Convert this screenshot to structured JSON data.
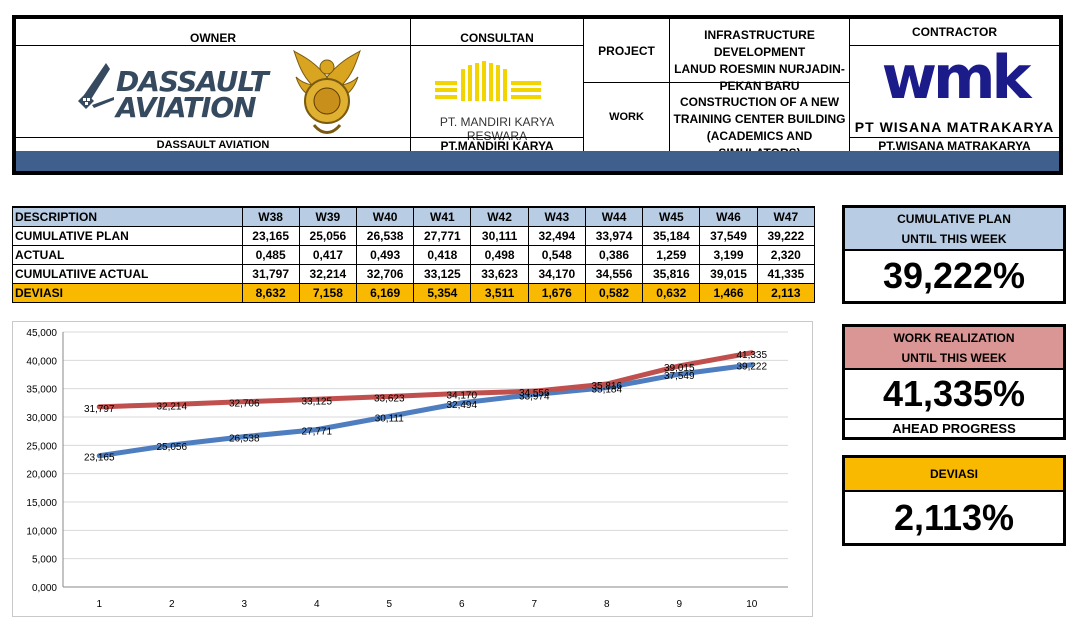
{
  "header": {
    "owner_label": "OWNER",
    "owner_logo_line1": "DASSAULT",
    "owner_logo_line2": "AVIATION",
    "owner_name": "DASSAULT AVIATION",
    "consultant_label": "CONSULTAN",
    "consultant_logo_text": "PT. MANDIRI KARYA RESWARA",
    "consultant_name": "PT.MANDIRI KARYA RESWARA",
    "project_label": "PROJECT",
    "project_value_line1": "INFRASTRUCTURE DEVELOPMENT",
    "project_value_line2": "LANUD ROESMIN NURJADIN-",
    "project_value_line3": "PEKAN BARU",
    "work_label": "WORK",
    "work_value_line1": "CONSTRUCTION OF A NEW",
    "work_value_line2": "TRAINING CENTER BUILDING",
    "work_value_line3": "(ACADEMICS AND SIMULATORS)",
    "contractor_label": "CONTRACTOR",
    "contractor_logo": "wmk",
    "contractor_logo_text": "PT WISANA MATRAKARYA",
    "contractor_name": "PT.WISANA MATRAKARYA"
  },
  "table": {
    "columns": [
      "DESCRIPTION",
      "W38",
      "W39",
      "W40",
      "W41",
      "W42",
      "W43",
      "W44",
      "W45",
      "W46",
      "W47"
    ],
    "rows": [
      {
        "label": "CUMULATIVE PLAN",
        "values": [
          "23,165",
          "25,056",
          "26,538",
          "27,771",
          "30,111",
          "32,494",
          "33,974",
          "35,184",
          "37,549",
          "39,222"
        ]
      },
      {
        "label": "ACTUAL",
        "values": [
          "0,485",
          "0,417",
          "0,493",
          "0,418",
          "0,498",
          "0,548",
          "0,386",
          "1,259",
          "3,199",
          "2,320"
        ]
      },
      {
        "label": "CUMULATIIVE ACTUAL",
        "values": [
          "31,797",
          "32,214",
          "32,706",
          "33,125",
          "33,623",
          "34,170",
          "34,556",
          "35,816",
          "39,015",
          "41,335"
        ]
      },
      {
        "label": "DEVIASI",
        "values": [
          "8,632",
          "7,158",
          "6,169",
          "5,354",
          "3,511",
          "1,676",
          "0,582",
          "0,632",
          "1,466",
          "2,113"
        ]
      }
    ]
  },
  "summary": {
    "plan_head_line1": "CUMULATIVE PLAN",
    "plan_head_line2": "UNTIL THIS WEEK",
    "plan_value": "39,222%",
    "work_head_line1": "WORK REALIZATION",
    "work_head_line2": "UNTIL THIS WEEK",
    "work_value": "41,335%",
    "ahead_label": "AHEAD PROGRESS",
    "dev_head": "DEVIASI",
    "dev_value": "2,113%"
  },
  "colors": {
    "header_strip": "#3f5f8d",
    "table_header": "#b8cce4",
    "deviasi_row": "#f9b900",
    "plan_box_head": "#b8cce4",
    "work_box_head": "#da9694",
    "dev_box_head": "#f9b900",
    "series_plan": "#4f7ec0",
    "series_actual": "#c0504d"
  },
  "chart_data": {
    "type": "line",
    "x": [
      1,
      2,
      3,
      4,
      5,
      6,
      7,
      8,
      9,
      10
    ],
    "ylim": [
      0,
      45
    ],
    "yticks": [
      "0,000",
      "5,000",
      "10,000",
      "15,000",
      "20,000",
      "25,000",
      "30,000",
      "35,000",
      "40,000",
      "45,000"
    ],
    "grid": true,
    "series": [
      {
        "values": [
          23.165,
          25.056,
          26.538,
          27.771,
          30.111,
          32.494,
          33.974,
          35.184,
          37.549,
          39.222
        ],
        "labels": [
          "23,165",
          "25,056",
          "26,538",
          "27,771",
          "30,111",
          "32,494",
          "33,974",
          "35,184",
          "37,549",
          "39,222"
        ],
        "color": "#4f7ec0"
      },
      {
        "values": [
          31.797,
          32.214,
          32.706,
          33.125,
          33.623,
          34.17,
          34.556,
          35.816,
          39.015,
          41.335
        ],
        "labels": [
          "31,797",
          "32,214",
          "32,706",
          "33,125",
          "33,623",
          "34,170",
          "34,556",
          "35,816",
          "39,015",
          "41,335"
        ],
        "color": "#c0504d"
      }
    ]
  }
}
